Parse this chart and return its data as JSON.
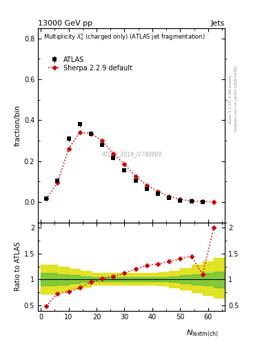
{
  "title_top": "13000 GeV pp",
  "title_right": "Jets",
  "main_title": "Multiplicity $\\lambda_{0}^{0}$ (charged only) (ATLAS jet fragmentation)",
  "atlas_label": "ATLAS",
  "sherpa_label": "Sherpa 2.2.9 default",
  "watermark": "ATLAS_2019_I1740909",
  "right_label1": "Rivet 3.1.10, 3.1M events",
  "right_label2": "mcplots.cern.ch [arXiv:1306.3436]",
  "xlabel": "$N_{\\mathrm{lextm(ch)}}$",
  "ylabel_main": "fraction/bin",
  "ylabel_ratio": "Ratio to ATLAS",
  "atlas_x": [
    2,
    6,
    10,
    14,
    18,
    22,
    26,
    30,
    34,
    38,
    42,
    46,
    50,
    54,
    58
  ],
  "atlas_y": [
    0.015,
    0.105,
    0.31,
    0.38,
    0.335,
    0.28,
    0.215,
    0.155,
    0.105,
    0.065,
    0.04,
    0.02,
    0.008,
    0.003,
    0.001
  ],
  "atlas_yerr": [
    0.002,
    0.008,
    0.012,
    0.012,
    0.012,
    0.008,
    0.008,
    0.006,
    0.005,
    0.004,
    0.003,
    0.002,
    0.001,
    0.001,
    0.0005
  ],
  "sherpa_x": [
    2,
    6,
    10,
    14,
    18,
    22,
    26,
    30,
    34,
    38,
    42,
    46,
    50,
    54,
    58,
    62
  ],
  "sherpa_y": [
    0.015,
    0.095,
    0.26,
    0.34,
    0.335,
    0.3,
    0.235,
    0.185,
    0.125,
    0.082,
    0.05,
    0.028,
    0.012,
    0.005,
    0.002,
    0.001
  ],
  "ratio_x": [
    2,
    6,
    10,
    14,
    18,
    22,
    26,
    30,
    34,
    38,
    42,
    46,
    50,
    54,
    58,
    62
  ],
  "ratio_y": [
    0.49,
    0.73,
    0.76,
    0.84,
    0.95,
    1.02,
    1.06,
    1.12,
    1.2,
    1.27,
    1.3,
    1.35,
    1.4,
    1.45,
    1.1,
    2.0
  ],
  "band_x": [
    0,
    2,
    6,
    10,
    14,
    18,
    22,
    26,
    30,
    34,
    38,
    42,
    46,
    50,
    54,
    58,
    62,
    66
  ],
  "band_green_lo": [
    0.88,
    0.88,
    0.9,
    0.93,
    0.95,
    0.97,
    0.97,
    0.97,
    0.97,
    0.97,
    0.97,
    0.97,
    0.95,
    0.93,
    0.9,
    0.88,
    0.85,
    0.83
  ],
  "band_green_hi": [
    1.12,
    1.12,
    1.1,
    1.08,
    1.06,
    1.04,
    1.04,
    1.04,
    1.04,
    1.04,
    1.04,
    1.04,
    1.06,
    1.08,
    1.1,
    1.12,
    1.15,
    1.18
  ],
  "band_yellow_lo": [
    0.72,
    0.72,
    0.76,
    0.82,
    0.86,
    0.9,
    0.9,
    0.9,
    0.9,
    0.9,
    0.9,
    0.88,
    0.85,
    0.8,
    0.75,
    0.7,
    0.64,
    0.58
  ],
  "band_yellow_hi": [
    1.28,
    1.28,
    1.24,
    1.2,
    1.16,
    1.12,
    1.12,
    1.12,
    1.12,
    1.12,
    1.12,
    1.14,
    1.17,
    1.22,
    1.28,
    1.35,
    1.42,
    1.5
  ],
  "main_ylim": [
    -0.1,
    0.85
  ],
  "ratio_ylim": [
    0.4,
    2.1
  ],
  "ratio_yticks": [
    0.5,
    1.0,
    1.5,
    2.0
  ],
  "ratio_yticklabels": [
    "0.5",
    "1",
    "1.5",
    "2"
  ],
  "xlim": [
    -1,
    66
  ],
  "color_atlas": "#000000",
  "color_sherpa": "#cc0000",
  "color_green": "#44bb44",
  "color_yellow": "#dddd00",
  "bg_color": "#ffffff"
}
